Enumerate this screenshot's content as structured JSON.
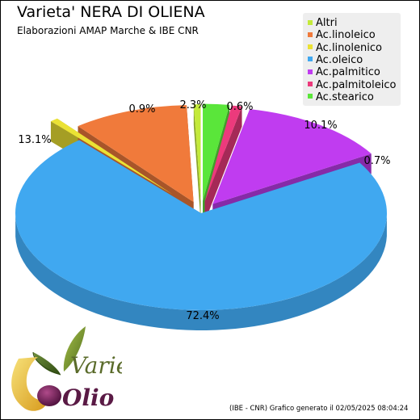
{
  "title": "Varieta' NERA DI OLIENA",
  "subtitle": "Elaborazioni AMAP Marche & IBE CNR",
  "footer": "(IBE - CNR) Grafico generato il 02/05/2025 08:04:24",
  "logo": {
    "text_top": "Varietà",
    "text_bottom": "Olio"
  },
  "chart_data": {
    "type": "pie",
    "style": "3d-exploded",
    "legend_position": "top-right",
    "categories": [
      "Altri",
      "Ac.linoleico",
      "Ac.linolenico",
      "Ac.oleico",
      "Ac.palmitico",
      "Ac.palmitoleico",
      "Ac.stearico"
    ],
    "values": [
      0.6,
      10.1,
      0.7,
      72.4,
      13.1,
      0.9,
      2.3
    ],
    "labels": [
      "0.6%",
      "10.1%",
      "0.7%",
      "72.4%",
      "13.1%",
      "0.9%",
      "2.3%"
    ],
    "colors": [
      "#c4ea3a",
      "#f07a3b",
      "#ebe234",
      "#40a8f0",
      "#c03cf0",
      "#ec3a7c",
      "#5ae63a"
    ]
  }
}
